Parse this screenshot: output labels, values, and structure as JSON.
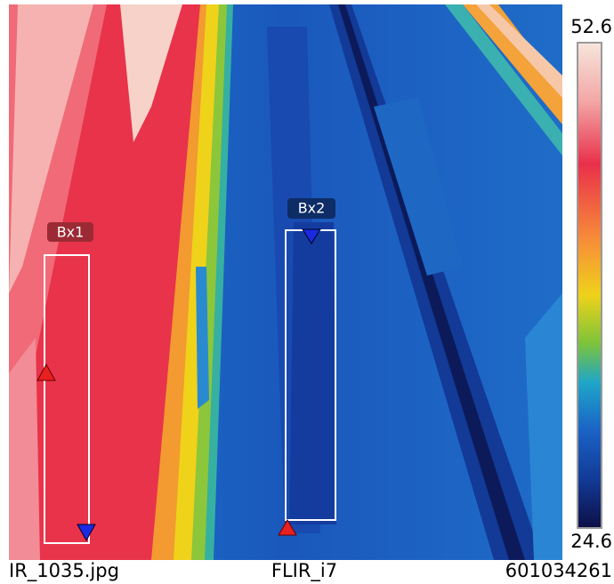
{
  "scale": {
    "max": "52.6",
    "min": "24.6"
  },
  "boxes": [
    {
      "label": "Bx1"
    },
    {
      "label": "Bx2"
    }
  ],
  "footer": {
    "file": "IR_1035.jpg",
    "camera": "FLIR_i7",
    "serial": "601034261"
  }
}
